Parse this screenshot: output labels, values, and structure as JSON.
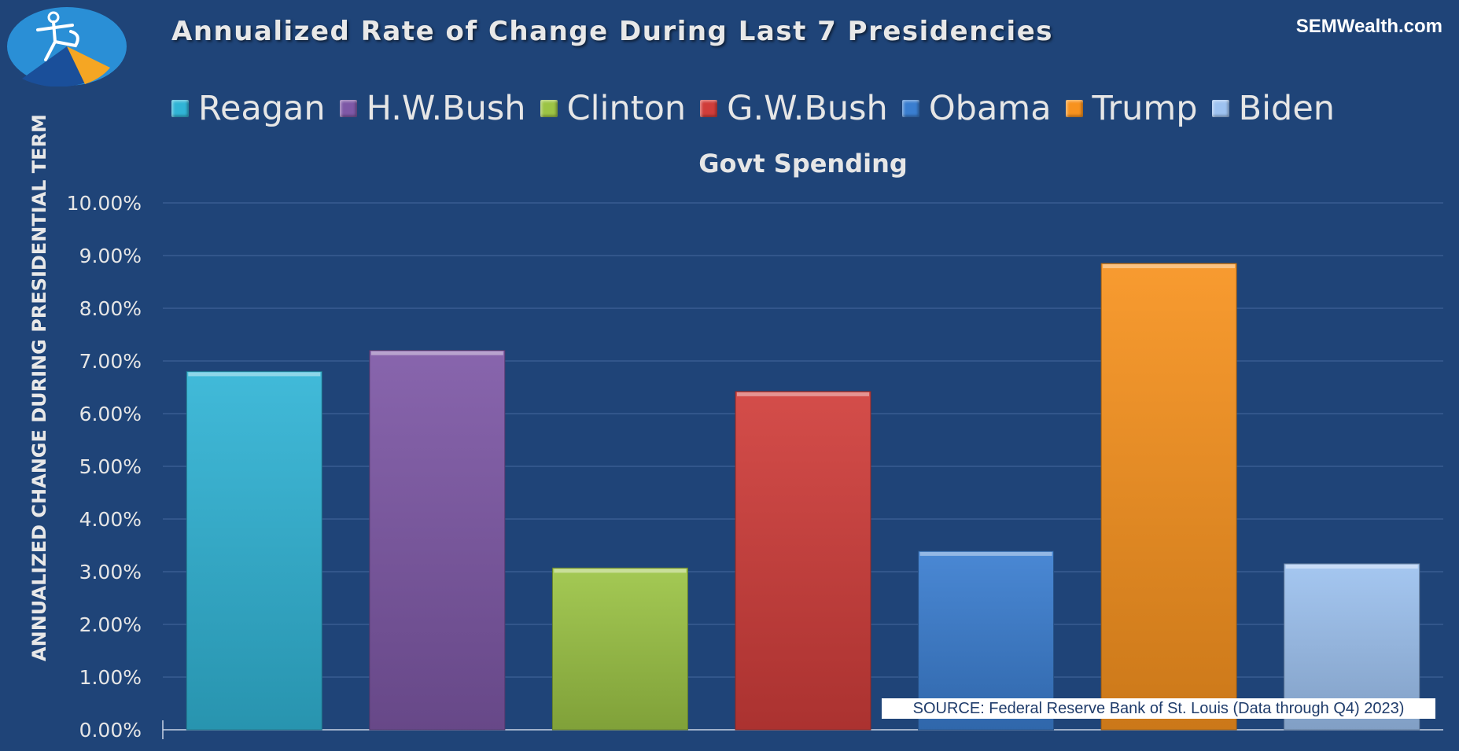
{
  "title": "Annualized Rate of Change During Last 7 Presidencies",
  "brand": "SEMWealth.com",
  "source_note": "SOURCE:  Federal Reserve Bank of St. Louis (Data through Q4) 2023)",
  "logo": {
    "icon": "figure-pie-logo-icon",
    "colors": [
      "#2a8fd6",
      "#1a4f9a",
      "#f5a623",
      "#ffffff"
    ]
  },
  "chart_data": {
    "type": "bar",
    "title": "Govt Spending",
    "ylabel": "ANNUALIZED CHANGE DURING PRESIDENTIAL TERM",
    "xlabel": "",
    "ylim": [
      0,
      10
    ],
    "y_ticks": [
      "0.00%",
      "1.00%",
      "2.00%",
      "3.00%",
      "4.00%",
      "5.00%",
      "6.00%",
      "7.00%",
      "8.00%",
      "9.00%",
      "10.00%"
    ],
    "grid": true,
    "legend_position": "top",
    "series": [
      {
        "name": "Reagan",
        "value": 6.8,
        "color": "#31b4d6"
      },
      {
        "name": "H.W.Bush",
        "value": 7.2,
        "color": "#7e58a6"
      },
      {
        "name": "Clinton",
        "value": 3.07,
        "color": "#9cc445"
      },
      {
        "name": "G.W.Bush",
        "value": 6.42,
        "color": "#d03d3a"
      },
      {
        "name": "Obama",
        "value": 3.39,
        "color": "#3a7ed0"
      },
      {
        "name": "Trump",
        "value": 8.85,
        "color": "#f7921e"
      },
      {
        "name": "Biden",
        "value": 3.15,
        "color": "#9dc2f0"
      }
    ]
  }
}
